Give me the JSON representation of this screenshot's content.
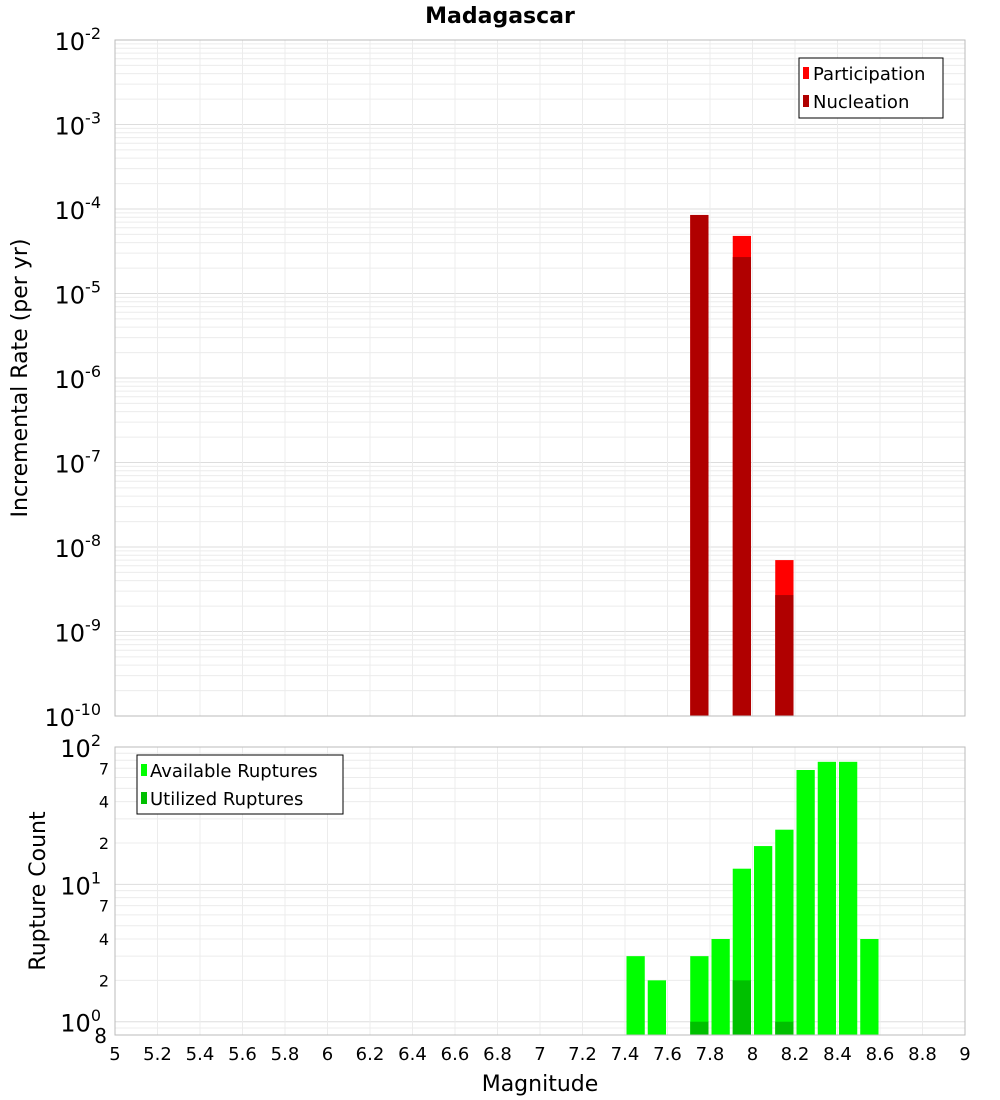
{
  "chart_data": [
    {
      "type": "bar",
      "title": "Madagascar",
      "xlabel": "",
      "ylabel": "Incremental Rate (per yr)",
      "yscale": "log",
      "ylim": [
        1e-10,
        0.01
      ],
      "xlim": [
        5,
        9
      ],
      "y_tick_labels": [
        {
          "base": "10",
          "exp": "-2"
        },
        {
          "base": "10",
          "exp": "-3"
        },
        {
          "base": "10",
          "exp": "-4"
        },
        {
          "base": "10",
          "exp": "-5"
        },
        {
          "base": "10",
          "exp": "-6"
        },
        {
          "base": "10",
          "exp": "-7"
        },
        {
          "base": "10",
          "exp": "-8"
        },
        {
          "base": "10",
          "exp": "-9"
        },
        {
          "base": "10",
          "exp": "-10"
        }
      ],
      "legend": {
        "placement": "top-right",
        "entries": [
          "Participation",
          "Nucleation"
        ]
      },
      "colors": {
        "Participation": "#ff0000",
        "Nucleation": "#b00000"
      },
      "grid": true,
      "bin_width": 0.1,
      "series": [
        {
          "name": "Participation",
          "x": [
            7.75,
            7.95,
            8.15
          ],
          "values": [
            8.5e-05,
            4.8e-05,
            7e-09
          ]
        },
        {
          "name": "Nucleation",
          "x": [
            7.75,
            7.95,
            8.15
          ],
          "values": [
            8.5e-05,
            2.7e-05,
            2.7e-09
          ]
        }
      ]
    },
    {
      "type": "bar",
      "xlabel": "Magnitude",
      "ylabel": "Rupture Count",
      "yscale": "log",
      "ylim": [
        0.8,
        100
      ],
      "xlim": [
        5,
        9
      ],
      "x_ticks": [
        "5",
        "5.2",
        "5.4",
        "5.6",
        "5.8",
        "6",
        "6.2",
        "6.4",
        "6.6",
        "6.8",
        "7",
        "7.2",
        "7.4",
        "7.6",
        "7.8",
        "8",
        "8.2",
        "8.4",
        "8.6",
        "8.8",
        "9"
      ],
      "y_tick_labels": [
        {
          "v": 100,
          "base": "10",
          "exp": "2",
          "major": true
        },
        {
          "v": 70,
          "text": "7"
        },
        {
          "v": 40,
          "text": "4"
        },
        {
          "v": 20,
          "text": "2"
        },
        {
          "v": 10,
          "base": "10",
          "exp": "1",
          "major": true
        },
        {
          "v": 7,
          "text": "7"
        },
        {
          "v": 4,
          "text": "4"
        },
        {
          "v": 2,
          "text": "2"
        },
        {
          "v": 1,
          "base": "10",
          "exp": "0",
          "major": true
        },
        {
          "v": 0.8,
          "text": "8"
        }
      ],
      "legend": {
        "placement": "top-left",
        "entries": [
          "Available Ruptures",
          "Utilized Ruptures"
        ]
      },
      "colors": {
        "Available Ruptures": "#00ff00",
        "Utilized Ruptures": "#00c000"
      },
      "grid": true,
      "bin_width": 0.1,
      "series": [
        {
          "name": "Available Ruptures",
          "x": [
            7.45,
            7.55,
            7.75,
            7.85,
            7.95,
            8.05,
            8.15,
            8.25,
            8.35,
            8.45,
            8.55
          ],
          "values": [
            3,
            2,
            3,
            4,
            13,
            19,
            25,
            68,
            78,
            78,
            4
          ]
        },
        {
          "name": "Utilized Ruptures",
          "x": [
            7.75,
            7.95,
            8.15
          ],
          "values": [
            1,
            2,
            1
          ]
        }
      ]
    }
  ]
}
